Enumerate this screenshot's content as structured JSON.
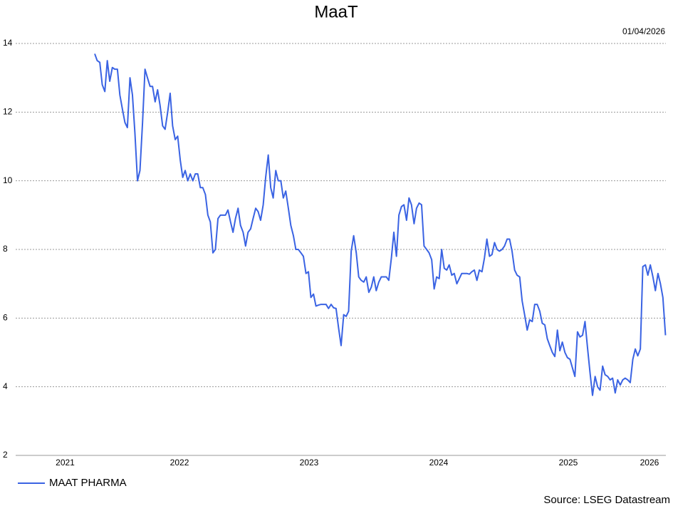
{
  "chart_data": {
    "type": "line",
    "title": "MaaT",
    "date": "01/04/2026",
    "source": "Source: LSEG Datastream",
    "x": [
      2021.846,
      2021.865,
      2021.885,
      2021.904,
      2021.924,
      2021.943,
      2021.962,
      2021.982,
      2022.001,
      2022.021,
      2022.04,
      2022.059,
      2022.079,
      2022.098,
      2022.118,
      2022.137,
      2022.156,
      2022.176,
      2022.195,
      2022.215,
      2022.234,
      2022.253,
      2022.273,
      2022.292,
      2022.312,
      2022.331,
      2022.35,
      2022.37,
      2022.389,
      2022.409,
      2022.428,
      2022.447,
      2022.467,
      2022.486,
      2022.506,
      2022.525,
      2022.544,
      2022.564,
      2022.583,
      2022.603,
      2022.622,
      2022.641,
      2022.661,
      2022.68,
      2022.7,
      2022.719,
      2022.738,
      2022.758,
      2022.777,
      2022.797,
      2022.816,
      2022.835,
      2022.855,
      2022.874,
      2022.894,
      2022.913,
      2022.932,
      2022.952,
      2022.971,
      2022.991,
      2023.01,
      2023.029,
      2023.049,
      2023.068,
      2023.088,
      2023.107,
      2023.126,
      2023.146,
      2023.165,
      2023.185,
      2023.204,
      2023.223,
      2023.243,
      2023.262,
      2023.282,
      2023.301,
      2023.32,
      2023.34,
      2023.359,
      2023.379,
      2023.398,
      2023.417,
      2023.437,
      2023.456,
      2023.476,
      2023.495,
      2023.514,
      2023.534,
      2023.553,
      2023.573,
      2023.592,
      2023.611,
      2023.631,
      2023.65,
      2023.67,
      2023.689,
      2023.708,
      2023.728,
      2023.747,
      2023.767,
      2023.786,
      2023.805,
      2023.825,
      2023.844,
      2023.864,
      2023.883,
      2023.902,
      2023.922,
      2023.941,
      2023.961,
      2023.98,
      2023.999,
      2024.018,
      2024.038,
      2024.057,
      2024.077,
      2024.096,
      2024.115,
      2024.135,
      2024.154,
      2024.174,
      2024.193,
      2024.213,
      2024.232,
      2024.252,
      2024.271,
      2024.29,
      2024.31,
      2024.329,
      2024.349,
      2024.368,
      2024.387,
      2024.407,
      2024.426,
      2024.446,
      2024.465,
      2024.484,
      2024.504,
      2024.523,
      2024.543,
      2024.562,
      2024.581,
      2024.601,
      2024.62,
      2024.64,
      2024.659,
      2024.678,
      2024.698,
      2024.717,
      2024.737,
      2024.756,
      2024.775,
      2024.795,
      2024.814,
      2024.834,
      2024.853,
      2024.872,
      2024.892,
      2024.911,
      2024.931,
      2024.95,
      2024.969,
      2024.989,
      2025.008,
      2025.028,
      2025.047,
      2025.066,
      2025.086,
      2025.105,
      2025.125,
      2025.144,
      2025.163,
      2025.183,
      2025.202,
      2025.222,
      2025.241,
      2025.26,
      2025.28,
      2025.299,
      2025.319,
      2025.338,
      2025.357,
      2025.377,
      2025.396,
      2025.416,
      2025.435,
      2025.454,
      2025.474,
      2025.493,
      2025.513,
      2025.532,
      2025.551,
      2025.571,
      2025.59,
      2025.61,
      2025.629,
      2025.648,
      2025.668,
      2025.687,
      2025.707,
      2025.726,
      2025.745,
      2025.765,
      2025.784,
      2025.804,
      2025.823,
      2025.842,
      2025.862,
      2025.881,
      2025.901,
      2025.92,
      2025.939,
      2025.959,
      2025.978,
      2025.998,
      2026.017,
      2026.036,
      2026.056,
      2026.075,
      2026.095,
      2026.114,
      2026.133,
      2026.153,
      2026.172,
      2026.192,
      2026.211,
      2026.23,
      2026.25
    ],
    "series": [
      {
        "name": "MAAT PHARMA",
        "color": "#3a63e3",
        "values": [
          13.7,
          13.5,
          13.45,
          12.8,
          12.6,
          13.5,
          12.9,
          13.3,
          13.25,
          13.25,
          12.5,
          12.1,
          11.7,
          11.55,
          13.0,
          12.5,
          11.4,
          10.0,
          10.3,
          11.7,
          13.25,
          13.0,
          12.75,
          12.75,
          12.3,
          12.65,
          12.2,
          11.6,
          11.5,
          12.0,
          12.55,
          11.6,
          11.2,
          11.3,
          10.6,
          10.1,
          10.3,
          10.0,
          10.2,
          10.0,
          10.2,
          10.2,
          9.8,
          9.8,
          9.6,
          9.0,
          8.8,
          7.9,
          8.0,
          8.9,
          9.0,
          9.0,
          9.0,
          9.15,
          8.8,
          8.5,
          8.9,
          9.2,
          8.7,
          8.5,
          8.1,
          8.5,
          8.6,
          8.9,
          9.2,
          9.1,
          8.85,
          9.3,
          10.1,
          10.75,
          9.8,
          9.5,
          10.3,
          10.0,
          10.0,
          9.5,
          9.7,
          9.2,
          8.7,
          8.4,
          8.0,
          8.0,
          7.9,
          7.8,
          7.3,
          7.35,
          6.6,
          6.7,
          6.35,
          6.38,
          6.4,
          6.4,
          6.4,
          6.28,
          6.4,
          6.3,
          6.28,
          5.7,
          5.2,
          6.1,
          6.05,
          6.2,
          7.95,
          8.4,
          7.9,
          7.2,
          7.1,
          7.05,
          7.2,
          6.75,
          6.9,
          7.2,
          6.8,
          7.05,
          7.2,
          7.2,
          7.2,
          7.1,
          7.75,
          8.5,
          7.8,
          9.0,
          9.25,
          9.3,
          8.85,
          9.5,
          9.3,
          8.75,
          9.2,
          9.35,
          9.3,
          8.1,
          8.0,
          7.9,
          7.7,
          6.85,
          7.2,
          7.15,
          8.0,
          7.45,
          7.4,
          7.55,
          7.25,
          7.3,
          7.0,
          7.15,
          7.3,
          7.3,
          7.3,
          7.28,
          7.35,
          7.4,
          7.1,
          7.4,
          7.35,
          7.75,
          8.3,
          7.8,
          7.85,
          8.2,
          8.0,
          7.95,
          8.0,
          8.1,
          8.3,
          8.3,
          7.95,
          7.4,
          7.25,
          7.2,
          6.5,
          6.1,
          5.65,
          5.95,
          5.9,
          6.4,
          6.4,
          6.2,
          5.85,
          5.8,
          5.4,
          5.2,
          5.0,
          4.88,
          5.65,
          5.05,
          5.3,
          5.0,
          4.85,
          4.8,
          4.55,
          4.3,
          5.6,
          5.45,
          5.5,
          5.9,
          5.15,
          4.4,
          3.75,
          4.3,
          4.0,
          3.9,
          4.6,
          4.35,
          4.3,
          4.2,
          4.25,
          3.82,
          4.2,
          4.05,
          4.2,
          4.25,
          4.2,
          4.12,
          4.8,
          5.1,
          4.9,
          5.1,
          7.5,
          7.55,
          7.25,
          7.55,
          7.2,
          6.8,
          7.3,
          7.0,
          6.6,
          5.5
        ]
      }
    ],
    "xlim": [
      2021.236,
      2026.253
    ],
    "xticks": [
      2021,
      2022,
      2023,
      2024,
      2025,
      2026
    ],
    "ylim": [
      2,
      14
    ],
    "yticks": [
      2,
      4,
      6,
      8,
      10,
      12,
      14
    ],
    "grid": true
  }
}
